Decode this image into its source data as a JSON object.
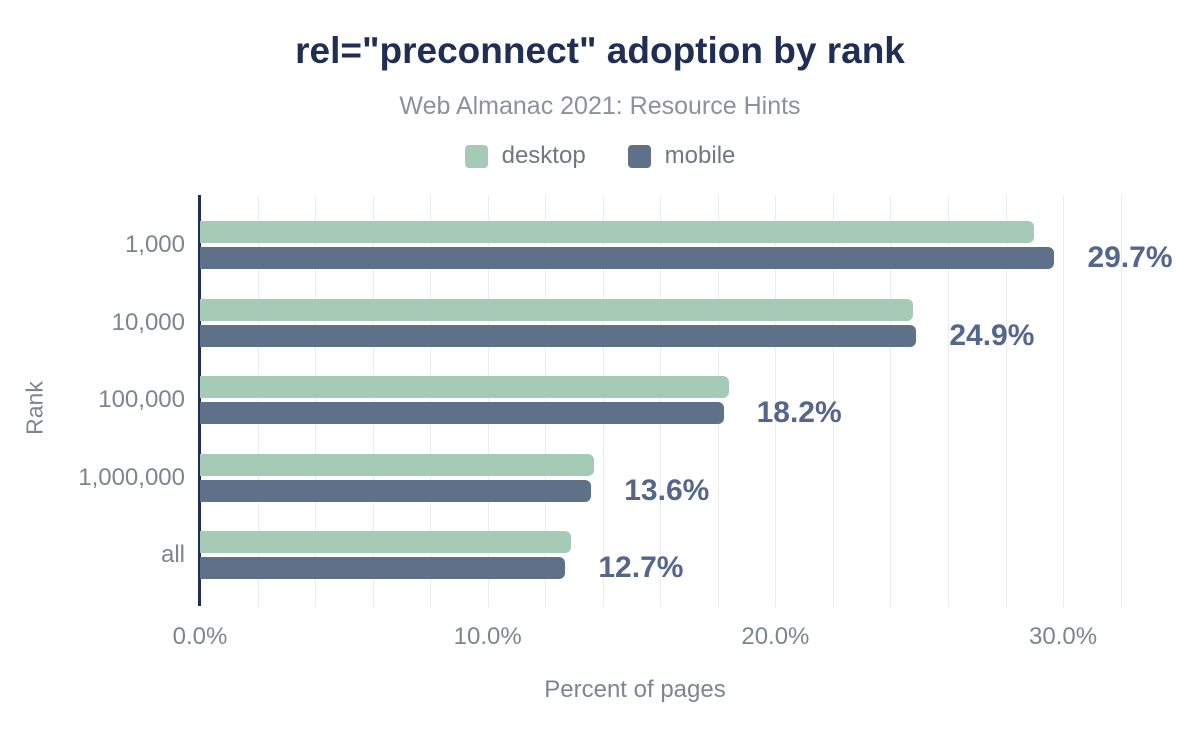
{
  "header": {
    "title": "rel=\"preconnect\" adoption by rank",
    "subtitle": "Web Almanac 2021: Resource Hints"
  },
  "colors": {
    "title": "#1f2e52",
    "subtitle_text": "#8b929d",
    "axis_line": "#1f2e52",
    "gridline": "#ececf0",
    "tick_text": "#7d8591",
    "value_label_text": "#54668b",
    "desktop": "#a5cab6",
    "mobile": "#5f7089"
  },
  "chart_data": {
    "type": "bar",
    "orientation": "horizontal",
    "title": "rel=\"preconnect\" adoption by rank",
    "subtitle": "Web Almanac 2021: Resource Hints",
    "categories": [
      "1,000",
      "10,000",
      "100,000",
      "1,000,000",
      "all"
    ],
    "series": [
      {
        "name": "desktop",
        "color": "#a5cab6",
        "values": [
          29.0,
          24.8,
          18.4,
          13.7,
          12.9
        ]
      },
      {
        "name": "mobile",
        "color": "#5f7089",
        "values": [
          29.7,
          24.9,
          18.2,
          13.6,
          12.7
        ]
      }
    ],
    "data_labels": [
      "29.7%",
      "24.9%",
      "18.2%",
      "13.6%",
      "12.7%"
    ],
    "data_label_series": "mobile",
    "xlabel": "Percent of pages",
    "ylabel": "Rank",
    "x_ticks": [
      "0.0%",
      "10.0%",
      "20.0%",
      "30.0%"
    ],
    "x_tick_values": [
      0,
      10,
      20,
      30
    ],
    "xlim": [
      0,
      32.5
    ],
    "gridline_step": 2,
    "grid": true,
    "legend_position": "top-center",
    "unit": "percent"
  }
}
